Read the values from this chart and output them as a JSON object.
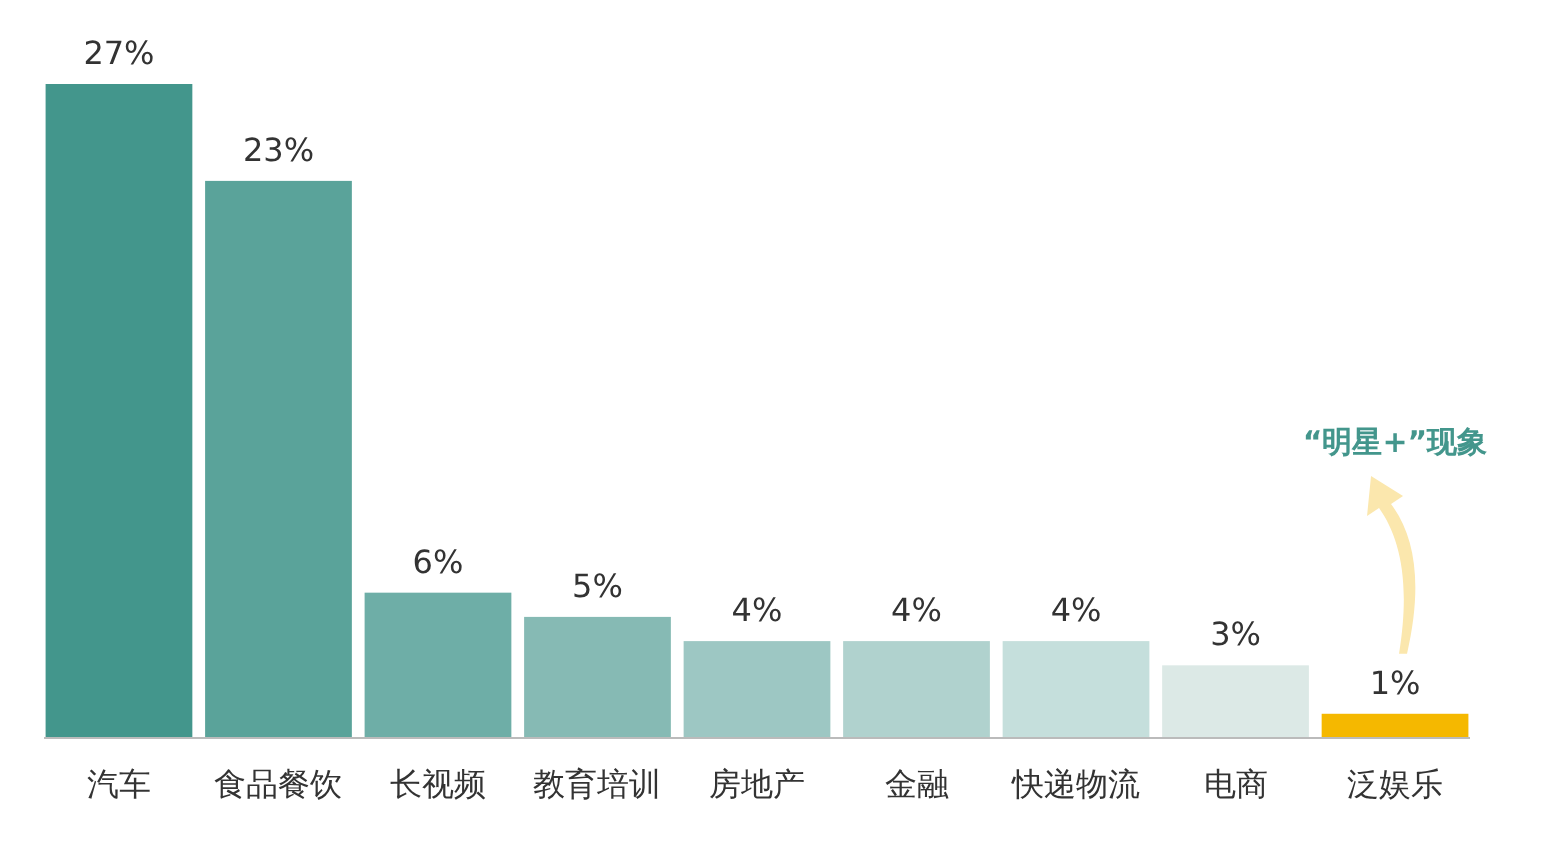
{
  "chart_data": {
    "type": "bar",
    "categories": [
      "汽车",
      "食品餐饮",
      "长视频",
      "教育培训",
      "房地产",
      "金融",
      "快递物流",
      "电商",
      "泛娱乐"
    ],
    "values": [
      27,
      23,
      6,
      5,
      4,
      4,
      4,
      3,
      1
    ],
    "value_labels": [
      "27%",
      "23%",
      "6%",
      "5%",
      "4%",
      "4%",
      "4%",
      "3%",
      "1%"
    ],
    "colors": [
      "#43968c",
      "#5aa39a",
      "#6eaea7",
      "#86bab4",
      "#9dc7c3",
      "#b0d2ce",
      "#c5dfdc",
      "#dce9e6",
      "#f5b800"
    ],
    "annotations": [
      "“明星+”现象"
    ]
  }
}
